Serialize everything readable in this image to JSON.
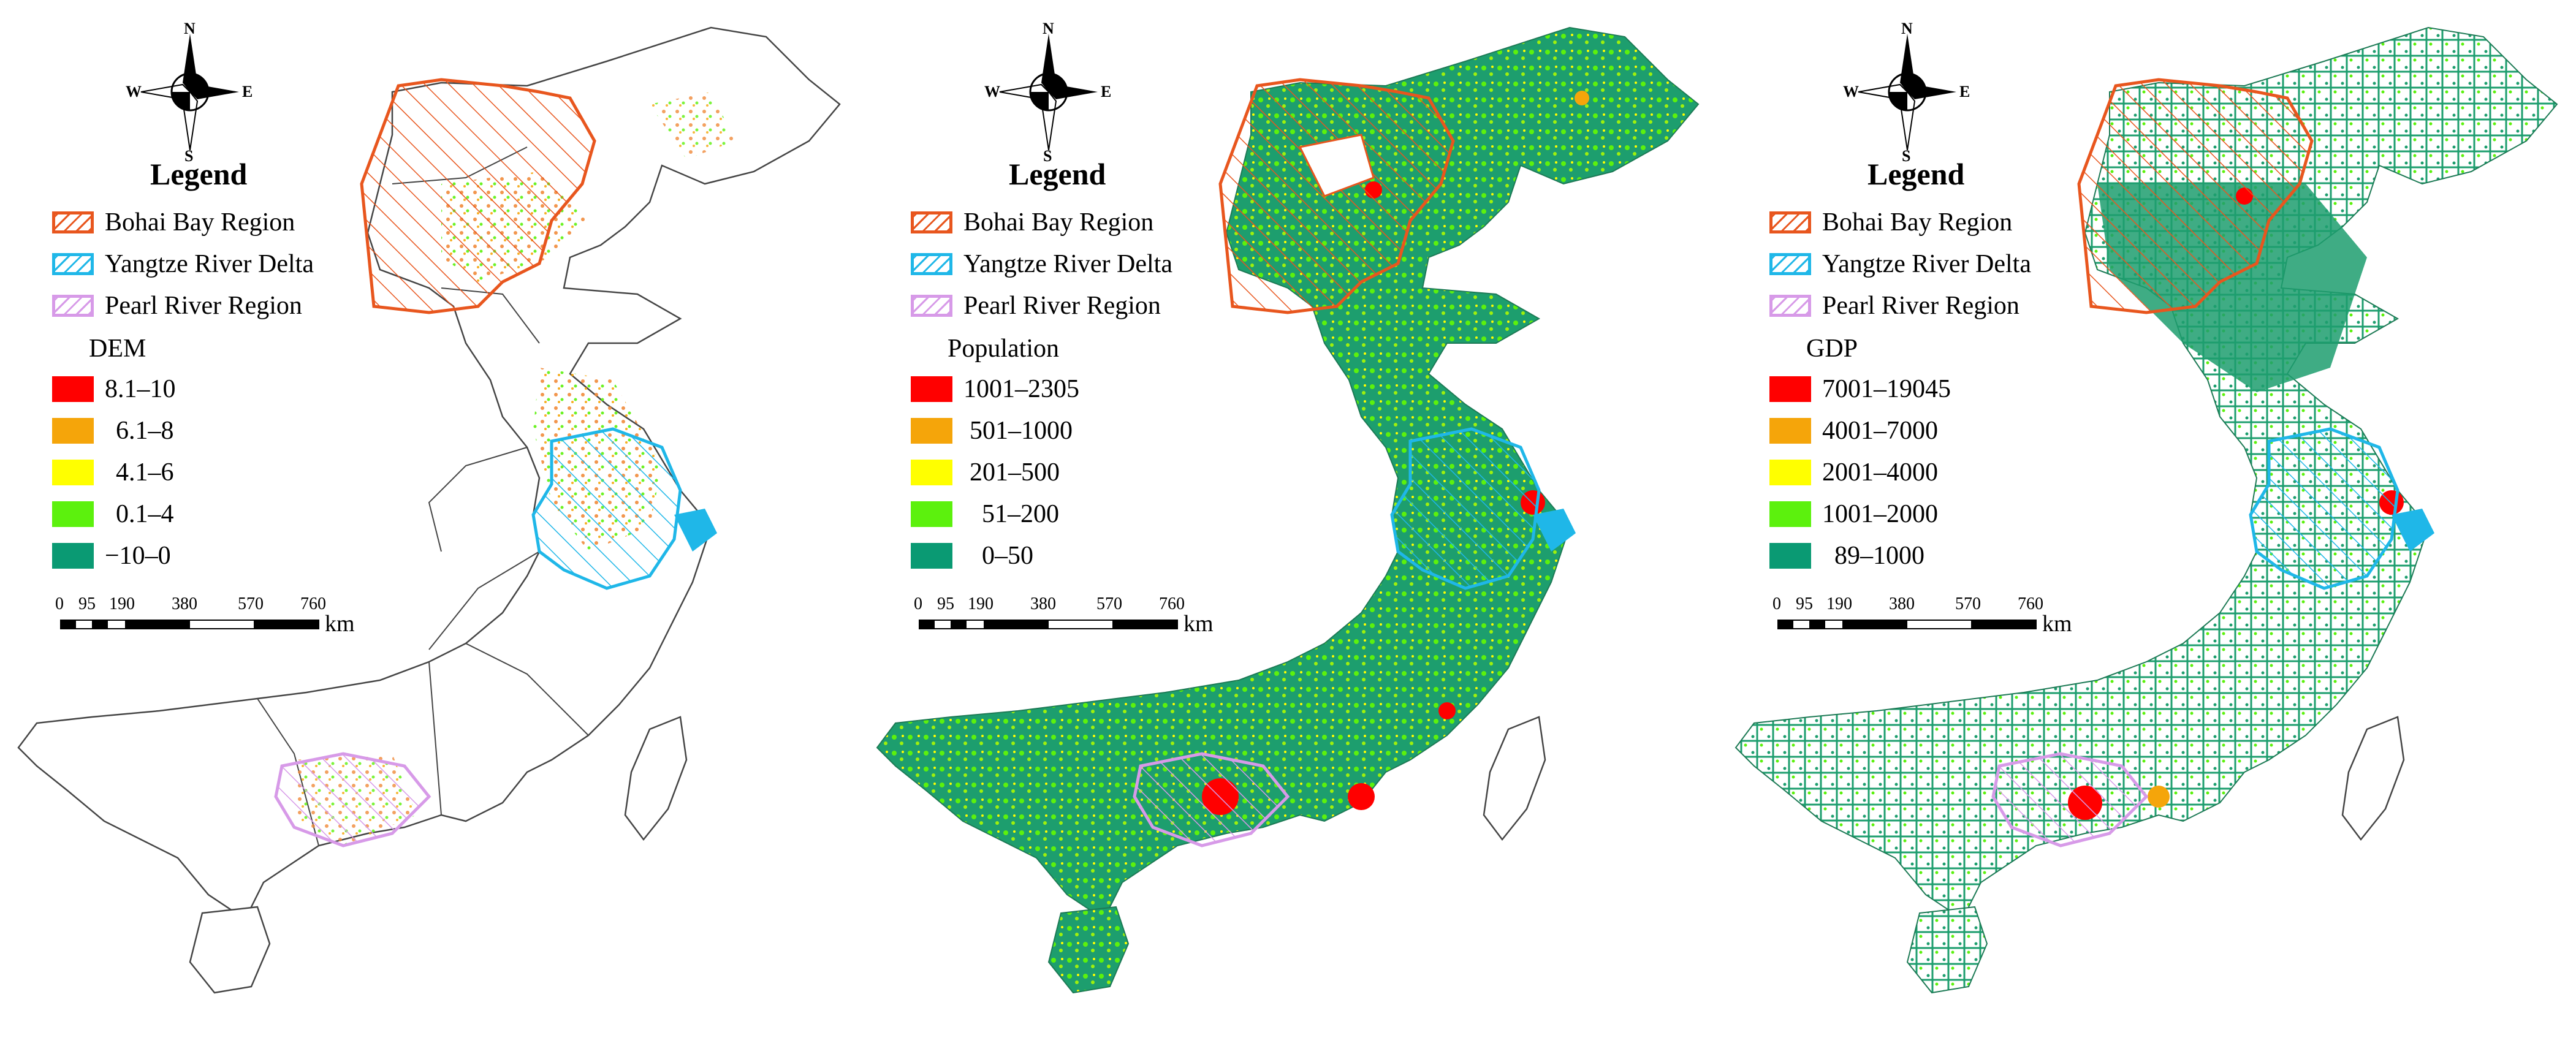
{
  "compass": {
    "n": "N",
    "s": "S",
    "e": "E",
    "w": "W"
  },
  "legend_title": "Legend",
  "regions": [
    {
      "label": "Bohai Bay Region",
      "color": "#e8561e"
    },
    {
      "label": "Yangtze River Delta",
      "color": "#1fb7e8"
    },
    {
      "label": "Pearl River Region",
      "color": "#d79ae8"
    }
  ],
  "panels": [
    {
      "variable": "DEM",
      "classes": [
        {
          "label": "8.1–10",
          "color": "#ff0000"
        },
        {
          "label": "6.1–8",
          "color": "#f5a50a"
        },
        {
          "label": "4.1–6",
          "color": "#ffff00"
        },
        {
          "label": "0.1–4",
          "color": "#5cf10d"
        },
        {
          "label": "−10–0",
          "color": "#0a9a73"
        }
      ]
    },
    {
      "variable": "Population",
      "classes": [
        {
          "label": "1001–2305",
          "color": "#ff0000"
        },
        {
          "label": "501–1000",
          "color": "#f5a50a"
        },
        {
          "label": "201–500",
          "color": "#ffff00"
        },
        {
          "label": "51–200",
          "color": "#5cf10d"
        },
        {
          "label": "0–50",
          "color": "#0a9a73"
        }
      ]
    },
    {
      "variable": "GDP",
      "classes": [
        {
          "label": "7001–19045",
          "color": "#ff0000"
        },
        {
          "label": "4001–7000",
          "color": "#f5a50a"
        },
        {
          "label": "2001–4000",
          "color": "#ffff00"
        },
        {
          "label": "1001–2000",
          "color": "#5cf10d"
        },
        {
          "label": "89–1000",
          "color": "#0a9a73"
        }
      ]
    }
  ],
  "scale_bar": {
    "ticks": [
      "0",
      "95",
      "190",
      "380",
      "570",
      "760"
    ],
    "unit": "km"
  }
}
